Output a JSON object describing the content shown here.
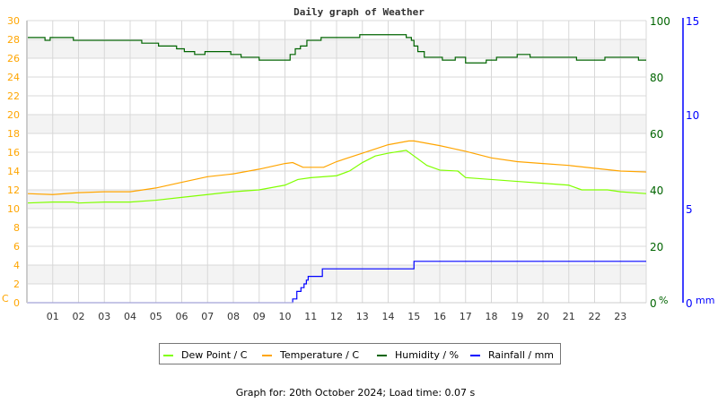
{
  "chart_data": {
    "type": "line",
    "title": "Daily graph of Weather",
    "footer": "Graph for: 20th October 2024; Load time: 0.07 s",
    "x_ticks": [
      "01",
      "02",
      "03",
      "04",
      "05",
      "06",
      "07",
      "08",
      "09",
      "10",
      "11",
      "12",
      "13",
      "14",
      "15",
      "16",
      "17",
      "18",
      "19",
      "20",
      "21",
      "22",
      "23"
    ],
    "xlim": [
      0,
      24
    ],
    "grid": true,
    "legend_placement": "bottom",
    "axes": {
      "left": {
        "unit": "C",
        "range": [
          0,
          30
        ],
        "ticks": [
          0,
          2,
          4,
          6,
          8,
          10,
          12,
          14,
          16,
          18,
          20,
          22,
          24,
          26,
          28,
          30
        ],
        "color": "#ffa500"
      },
      "right1": {
        "unit": "%",
        "range": [
          0,
          100
        ],
        "ticks": [
          0,
          20,
          40,
          60,
          80,
          100
        ],
        "color": "#006400"
      },
      "right2": {
        "unit": "mm",
        "range": [
          0,
          15
        ],
        "ticks": [
          0,
          5,
          10,
          15
        ],
        "color": "#0000ff"
      }
    },
    "series": [
      {
        "name": "Dew Point / C",
        "color": "#80ff00",
        "axis": "left",
        "step": false,
        "points": [
          [
            0,
            10.6
          ],
          [
            1,
            10.7
          ],
          [
            1.8,
            10.7
          ],
          [
            2,
            10.6
          ],
          [
            3,
            10.7
          ],
          [
            4,
            10.7
          ],
          [
            5,
            10.9
          ],
          [
            6,
            11.2
          ],
          [
            7,
            11.5
          ],
          [
            8,
            11.8
          ],
          [
            9,
            12.0
          ],
          [
            10,
            12.5
          ],
          [
            10.5,
            13.1
          ],
          [
            11,
            13.3
          ],
          [
            12,
            13.5
          ],
          [
            12.5,
            14.0
          ],
          [
            13,
            14.9
          ],
          [
            13.5,
            15.6
          ],
          [
            14,
            15.9
          ],
          [
            14.7,
            16.2
          ],
          [
            15,
            15.6
          ],
          [
            15.5,
            14.6
          ],
          [
            16,
            14.1
          ],
          [
            16.7,
            14.0
          ],
          [
            17,
            13.3
          ],
          [
            18,
            13.1
          ],
          [
            19,
            12.9
          ],
          [
            20,
            12.7
          ],
          [
            21,
            12.5
          ],
          [
            21.5,
            12.0
          ],
          [
            22,
            12.0
          ],
          [
            22.5,
            12.0
          ],
          [
            23,
            11.8
          ],
          [
            24,
            11.6
          ]
        ]
      },
      {
        "name": "Temperature / C",
        "color": "#ffa500",
        "axis": "left",
        "step": false,
        "points": [
          [
            0,
            11.6
          ],
          [
            1,
            11.5
          ],
          [
            2,
            11.7
          ],
          [
            3,
            11.8
          ],
          [
            4,
            11.8
          ],
          [
            5,
            12.2
          ],
          [
            6,
            12.8
          ],
          [
            7,
            13.4
          ],
          [
            8,
            13.7
          ],
          [
            9,
            14.2
          ],
          [
            10,
            14.8
          ],
          [
            10.3,
            14.9
          ],
          [
            10.7,
            14.4
          ],
          [
            11.5,
            14.4
          ],
          [
            12,
            15.0
          ],
          [
            13,
            15.9
          ],
          [
            14,
            16.8
          ],
          [
            14.8,
            17.2
          ],
          [
            15,
            17.2
          ],
          [
            16,
            16.7
          ],
          [
            17,
            16.1
          ],
          [
            18,
            15.4
          ],
          [
            19,
            15.0
          ],
          [
            20,
            14.8
          ],
          [
            21,
            14.6
          ],
          [
            22,
            14.3
          ],
          [
            23,
            14.0
          ],
          [
            24,
            13.9
          ]
        ]
      },
      {
        "name": "Humidity / %",
        "color": "#006400",
        "axis": "right1",
        "step": true,
        "points": [
          [
            0,
            94
          ],
          [
            0.7,
            93
          ],
          [
            0.9,
            94
          ],
          [
            1.8,
            93
          ],
          [
            4.45,
            92
          ],
          [
            5.1,
            91
          ],
          [
            5.8,
            90
          ],
          [
            6.1,
            89
          ],
          [
            6.5,
            88
          ],
          [
            6.9,
            89
          ],
          [
            7.9,
            88
          ],
          [
            8.3,
            87
          ],
          [
            9.0,
            86
          ],
          [
            10.2,
            88
          ],
          [
            10.4,
            90
          ],
          [
            10.6,
            91
          ],
          [
            10.85,
            93
          ],
          [
            11.4,
            94
          ],
          [
            12.9,
            95
          ],
          [
            14.7,
            94
          ],
          [
            14.9,
            93
          ],
          [
            15.0,
            91
          ],
          [
            15.15,
            89
          ],
          [
            15.4,
            87
          ],
          [
            16.1,
            86
          ],
          [
            16.6,
            87
          ],
          [
            17.0,
            85
          ],
          [
            17.8,
            86
          ],
          [
            18.2,
            87
          ],
          [
            19.0,
            88
          ],
          [
            19.5,
            87
          ],
          [
            21.3,
            86
          ],
          [
            22.4,
            87
          ],
          [
            23.7,
            86
          ],
          [
            24,
            86
          ]
        ]
      },
      {
        "name": "Rainfall / mm",
        "color": "#0000ff",
        "axis": "right2",
        "step": true,
        "points": [
          [
            0,
            0
          ],
          [
            10.3,
            0.2
          ],
          [
            10.46,
            0.6
          ],
          [
            10.62,
            0.8
          ],
          [
            10.74,
            1.0
          ],
          [
            10.83,
            1.2
          ],
          [
            10.9,
            1.4
          ],
          [
            11.45,
            1.8
          ],
          [
            15.0,
            2.2
          ],
          [
            24,
            2.2
          ]
        ]
      }
    ]
  }
}
